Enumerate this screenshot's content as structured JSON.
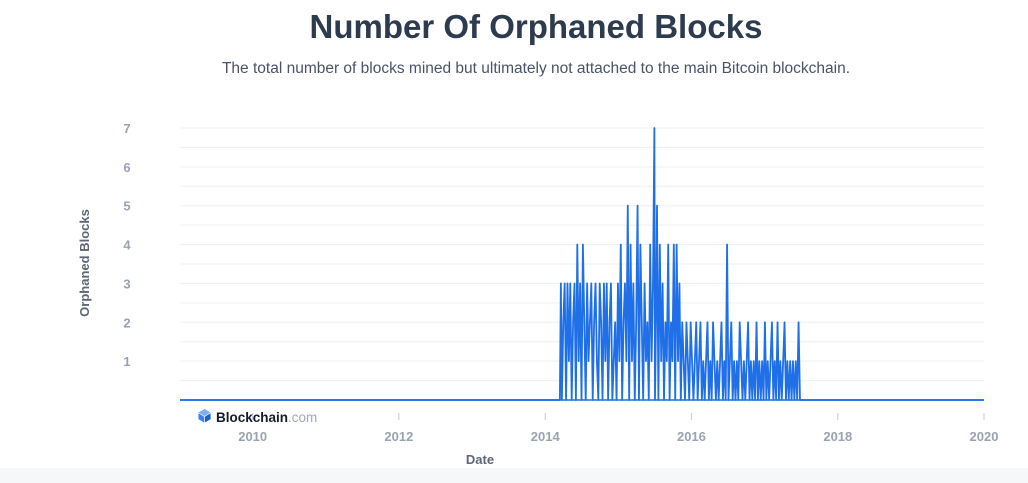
{
  "header": {
    "title": "Number Of Orphaned Blocks",
    "subtitle": "The total number of blocks mined but ultimately not attached to the main Bitcoin blockchain."
  },
  "watermark": {
    "brand": "Blockchain",
    "suffix": ".com",
    "icon": "cube-logo-icon"
  },
  "colors": {
    "line": "#1f6fe8",
    "grid": "#eef0f3",
    "baseline": "#1f6fe8",
    "tick_text": "#9aa3b2",
    "axis_title": "#5d6778"
  },
  "chart_data": {
    "type": "line",
    "title": "Number Of Orphaned Blocks",
    "subtitle": "The total number of blocks mined but ultimately not attached to the main Bitcoin blockchain.",
    "xlabel": "Date",
    "ylabel": "Orphaned Blocks",
    "x_ticks": [
      "2010",
      "2012",
      "2014",
      "2016",
      "2018",
      "2020"
    ],
    "y_ticks": [
      1,
      2,
      3,
      4,
      5,
      6,
      7
    ],
    "xlim": [
      "2009-01-03",
      "2020-01-01"
    ],
    "ylim": [
      0,
      7
    ],
    "grid": true,
    "legend": "none",
    "series": [
      {
        "points": [
          [
            "2009-01-03",
            0
          ],
          [
            "2014-03-15",
            0
          ],
          [
            "2014-03-20",
            3
          ],
          [
            "2014-03-25",
            0
          ],
          [
            "2014-04-01",
            2
          ],
          [
            "2014-04-08",
            3
          ],
          [
            "2014-04-15",
            0
          ],
          [
            "2014-04-22",
            3
          ],
          [
            "2014-04-29",
            1
          ],
          [
            "2014-05-06",
            3
          ],
          [
            "2014-05-13",
            0
          ],
          [
            "2014-05-20",
            2
          ],
          [
            "2014-05-27",
            3
          ],
          [
            "2014-06-03",
            0
          ],
          [
            "2014-06-10",
            4
          ],
          [
            "2014-06-17",
            1
          ],
          [
            "2014-06-24",
            3
          ],
          [
            "2014-07-01",
            0
          ],
          [
            "2014-07-08",
            4
          ],
          [
            "2014-07-15",
            2
          ],
          [
            "2014-07-22",
            0
          ],
          [
            "2014-07-29",
            3
          ],
          [
            "2014-08-05",
            1
          ],
          [
            "2014-08-12",
            2
          ],
          [
            "2014-08-19",
            3
          ],
          [
            "2014-08-26",
            0
          ],
          [
            "2014-09-02",
            2
          ],
          [
            "2014-09-09",
            3
          ],
          [
            "2014-09-16",
            1
          ],
          [
            "2014-09-23",
            0
          ],
          [
            "2014-09-30",
            3
          ],
          [
            "2014-10-07",
            2
          ],
          [
            "2014-10-14",
            0
          ],
          [
            "2014-10-21",
            3
          ],
          [
            "2014-10-28",
            1
          ],
          [
            "2014-11-04",
            3
          ],
          [
            "2014-11-11",
            0
          ],
          [
            "2014-11-18",
            2
          ],
          [
            "2014-11-25",
            3
          ],
          [
            "2014-12-02",
            0
          ],
          [
            "2014-12-09",
            1
          ],
          [
            "2014-12-16",
            2
          ],
          [
            "2014-12-23",
            0
          ],
          [
            "2014-12-30",
            3
          ],
          [
            "2015-01-06",
            1
          ],
          [
            "2015-01-13",
            4
          ],
          [
            "2015-01-20",
            0
          ],
          [
            "2015-01-27",
            2
          ],
          [
            "2015-02-03",
            3
          ],
          [
            "2015-02-10",
            1
          ],
          [
            "2015-02-17",
            5
          ],
          [
            "2015-02-24",
            0
          ],
          [
            "2015-03-03",
            4
          ],
          [
            "2015-03-10",
            1
          ],
          [
            "2015-03-17",
            3
          ],
          [
            "2015-03-24",
            0
          ],
          [
            "2015-03-31",
            2
          ],
          [
            "2015-04-07",
            5
          ],
          [
            "2015-04-14",
            0
          ],
          [
            "2015-04-21",
            4
          ],
          [
            "2015-04-28",
            2
          ],
          [
            "2015-05-05",
            0
          ],
          [
            "2015-05-12",
            3
          ],
          [
            "2015-05-19",
            1
          ],
          [
            "2015-05-26",
            2
          ],
          [
            "2015-06-02",
            0
          ],
          [
            "2015-06-09",
            4
          ],
          [
            "2015-06-16",
            1
          ],
          [
            "2015-06-23",
            3
          ],
          [
            "2015-06-30",
            7
          ],
          [
            "2015-07-03",
            0
          ],
          [
            "2015-07-08",
            2
          ],
          [
            "2015-07-13",
            5
          ],
          [
            "2015-07-20",
            0
          ],
          [
            "2015-07-27",
            4
          ],
          [
            "2015-08-03",
            1
          ],
          [
            "2015-08-10",
            3
          ],
          [
            "2015-08-17",
            0
          ],
          [
            "2015-08-24",
            2
          ],
          [
            "2015-08-31",
            1
          ],
          [
            "2015-09-07",
            4
          ],
          [
            "2015-09-14",
            0
          ],
          [
            "2015-09-21",
            2
          ],
          [
            "2015-09-28",
            1
          ],
          [
            "2015-10-05",
            4
          ],
          [
            "2015-10-12",
            0
          ],
          [
            "2015-10-19",
            4
          ],
          [
            "2015-10-26",
            1
          ],
          [
            "2015-11-02",
            3
          ],
          [
            "2015-11-09",
            0
          ],
          [
            "2015-11-16",
            2
          ],
          [
            "2015-11-23",
            1
          ],
          [
            "2015-11-30",
            0
          ],
          [
            "2015-12-07",
            2
          ],
          [
            "2015-12-14",
            1
          ],
          [
            "2015-12-21",
            0
          ],
          [
            "2015-12-28",
            2
          ],
          [
            "2016-01-04",
            1
          ],
          [
            "2016-01-11",
            0
          ],
          [
            "2016-01-18",
            1
          ],
          [
            "2016-01-25",
            2
          ],
          [
            "2016-02-01",
            0
          ],
          [
            "2016-02-08",
            1
          ],
          [
            "2016-02-15",
            2
          ],
          [
            "2016-02-22",
            0
          ],
          [
            "2016-02-29",
            1
          ],
          [
            "2016-03-07",
            0
          ],
          [
            "2016-03-14",
            1
          ],
          [
            "2016-03-21",
            2
          ],
          [
            "2016-03-28",
            0
          ],
          [
            "2016-04-04",
            1
          ],
          [
            "2016-04-11",
            0
          ],
          [
            "2016-04-18",
            2
          ],
          [
            "2016-04-25",
            1
          ],
          [
            "2016-05-02",
            0
          ],
          [
            "2016-05-09",
            1
          ],
          [
            "2016-05-16",
            0
          ],
          [
            "2016-05-23",
            1
          ],
          [
            "2016-05-30",
            2
          ],
          [
            "2016-06-06",
            0
          ],
          [
            "2016-06-13",
            1
          ],
          [
            "2016-06-20",
            0
          ],
          [
            "2016-06-27",
            4
          ],
          [
            "2016-07-04",
            0
          ],
          [
            "2016-07-11",
            1
          ],
          [
            "2016-07-18",
            2
          ],
          [
            "2016-07-25",
            0
          ],
          [
            "2016-08-01",
            1
          ],
          [
            "2016-08-08",
            0
          ],
          [
            "2016-08-15",
            1
          ],
          [
            "2016-08-22",
            0
          ],
          [
            "2016-08-29",
            2
          ],
          [
            "2016-09-05",
            1
          ],
          [
            "2016-09-12",
            0
          ],
          [
            "2016-09-19",
            1
          ],
          [
            "2016-09-26",
            0
          ],
          [
            "2016-10-03",
            1
          ],
          [
            "2016-10-10",
            2
          ],
          [
            "2016-10-17",
            0
          ],
          [
            "2016-10-24",
            1
          ],
          [
            "2016-10-31",
            0
          ],
          [
            "2016-11-07",
            1
          ],
          [
            "2016-11-14",
            0
          ],
          [
            "2016-11-21",
            2
          ],
          [
            "2016-11-28",
            0
          ],
          [
            "2016-12-05",
            1
          ],
          [
            "2016-12-12",
            0
          ],
          [
            "2016-12-19",
            1
          ],
          [
            "2016-12-26",
            0
          ],
          [
            "2017-01-02",
            2
          ],
          [
            "2017-01-09",
            0
          ],
          [
            "2017-01-16",
            1
          ],
          [
            "2017-01-23",
            0
          ],
          [
            "2017-01-30",
            1
          ],
          [
            "2017-02-06",
            2
          ],
          [
            "2017-02-13",
            0
          ],
          [
            "2017-02-20",
            1
          ],
          [
            "2017-02-27",
            0
          ],
          [
            "2017-03-06",
            2
          ],
          [
            "2017-03-13",
            0
          ],
          [
            "2017-03-20",
            1
          ],
          [
            "2017-03-27",
            0
          ],
          [
            "2017-04-03",
            1
          ],
          [
            "2017-04-10",
            2
          ],
          [
            "2017-04-17",
            0
          ],
          [
            "2017-04-24",
            1
          ],
          [
            "2017-05-01",
            0
          ],
          [
            "2017-05-08",
            1
          ],
          [
            "2017-05-15",
            0
          ],
          [
            "2017-05-22",
            1
          ],
          [
            "2017-05-29",
            0
          ],
          [
            "2017-06-05",
            1
          ],
          [
            "2017-06-12",
            0
          ],
          [
            "2017-06-19",
            2
          ],
          [
            "2017-06-26",
            0
          ],
          [
            "2020-01-01",
            0
          ]
        ]
      }
    ]
  }
}
